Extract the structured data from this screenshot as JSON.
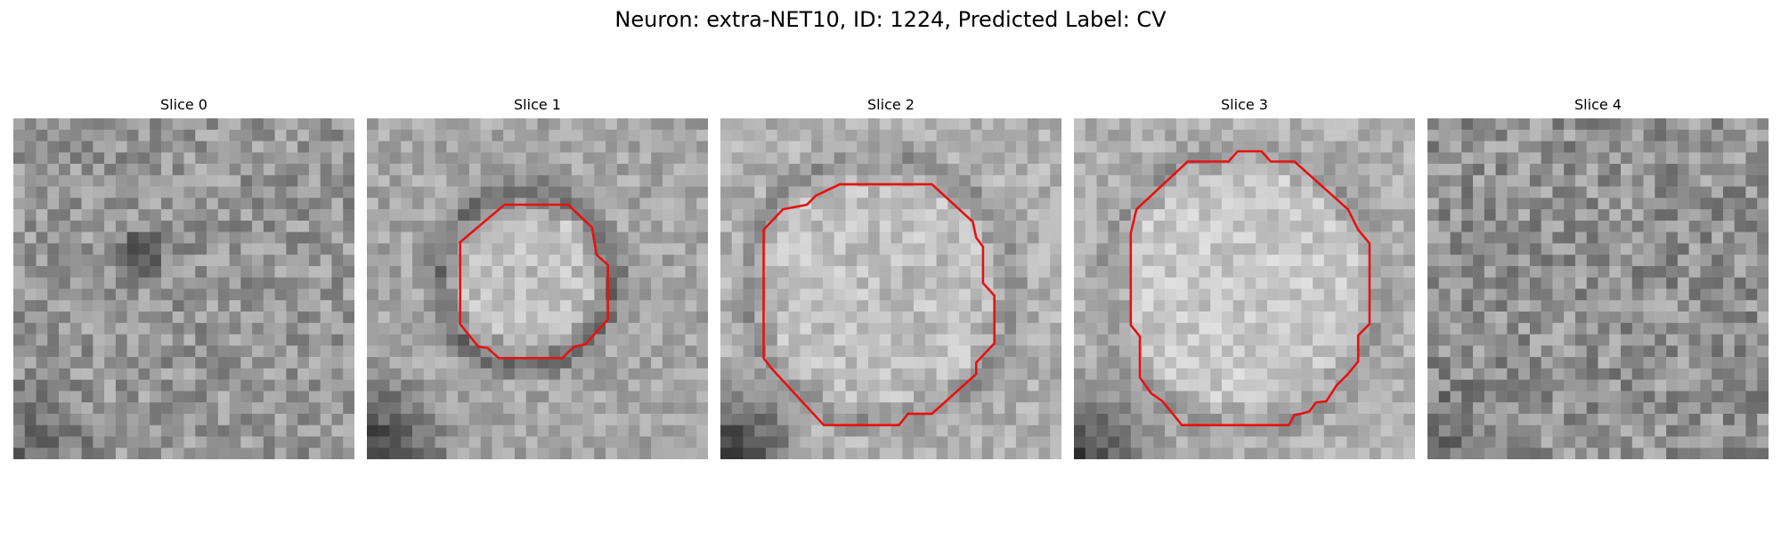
{
  "figure": {
    "title": "Neuron: extra-NET10, ID: 1224, Predicted Label: CV",
    "contour_color": "#e81010"
  },
  "panels": [
    {
      "title": "Slice 0",
      "has_contour": false
    },
    {
      "title": "Slice 1",
      "has_contour": true
    },
    {
      "title": "Slice 2",
      "has_contour": true
    },
    {
      "title": "Slice 3",
      "has_contour": true
    },
    {
      "title": "Slice 4",
      "has_contour": false
    }
  ]
}
